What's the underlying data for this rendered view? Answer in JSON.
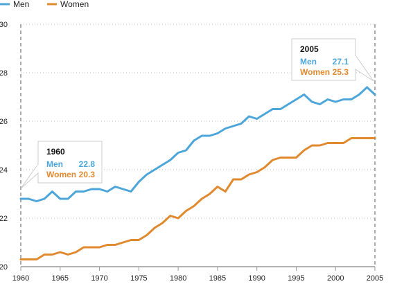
{
  "chart_data": {
    "type": "line",
    "title": "",
    "xlabel": "",
    "ylabel": "",
    "xlim": [
      1960,
      2005
    ],
    "ylim": [
      20,
      30
    ],
    "x_ticks": [
      1960,
      1965,
      1970,
      1975,
      1980,
      1985,
      1990,
      1995,
      2000,
      2005
    ],
    "y_ticks": [
      20,
      22,
      24,
      26,
      28,
      30
    ],
    "grid": "horizontal dotted",
    "legend_position": "top-left",
    "x": [
      1960,
      1961,
      1962,
      1963,
      1964,
      1965,
      1966,
      1967,
      1968,
      1969,
      1970,
      1971,
      1972,
      1973,
      1974,
      1975,
      1976,
      1977,
      1978,
      1979,
      1980,
      1981,
      1982,
      1983,
      1984,
      1985,
      1986,
      1987,
      1988,
      1989,
      1990,
      1991,
      1992,
      1993,
      1994,
      1995,
      1996,
      1997,
      1998,
      1999,
      2000,
      2001,
      2002,
      2003,
      2004,
      2005
    ],
    "series": [
      {
        "name": "Men",
        "color": "#4da6d9",
        "values": [
          22.8,
          22.8,
          22.7,
          22.8,
          23.1,
          22.8,
          22.8,
          23.1,
          23.1,
          23.2,
          23.2,
          23.1,
          23.3,
          23.2,
          23.1,
          23.5,
          23.8,
          24.0,
          24.2,
          24.4,
          24.7,
          24.8,
          25.2,
          25.4,
          25.4,
          25.5,
          25.7,
          25.8,
          25.9,
          26.2,
          26.1,
          26.3,
          26.5,
          26.5,
          26.7,
          26.9,
          27.1,
          26.8,
          26.7,
          26.9,
          26.8,
          26.9,
          26.9,
          27.1,
          27.4,
          27.1
        ]
      },
      {
        "name": "Women",
        "color": "#e0892e",
        "values": [
          20.3,
          20.3,
          20.3,
          20.5,
          20.5,
          20.6,
          20.5,
          20.6,
          20.8,
          20.8,
          20.8,
          20.9,
          20.9,
          21.0,
          21.1,
          21.1,
          21.3,
          21.6,
          21.8,
          22.1,
          22.0,
          22.3,
          22.5,
          22.8,
          23.0,
          23.3,
          23.1,
          23.6,
          23.6,
          23.8,
          23.9,
          24.1,
          24.4,
          24.5,
          24.5,
          24.5,
          24.8,
          25.0,
          25.0,
          25.1,
          25.1,
          25.1,
          25.3,
          25.3,
          25.3,
          25.3
        ]
      }
    ],
    "callouts": [
      {
        "year": "1960",
        "men_label": "Men",
        "men_value": "22.8",
        "women_label": "Women",
        "women_value": "20.3"
      },
      {
        "year": "2005",
        "men_label": "Men",
        "men_value": "27.1",
        "women_label": "Women",
        "women_value": "25.3"
      }
    ]
  },
  "legend": [
    {
      "label": "Men",
      "color": "#4da6d9"
    },
    {
      "label": "Women",
      "color": "#e0892e"
    }
  ],
  "colors": {
    "axis": "#999999",
    "grid": "#bbbbbb",
    "callout_border": "#cccccc",
    "callout_fill": "#ffffff"
  }
}
